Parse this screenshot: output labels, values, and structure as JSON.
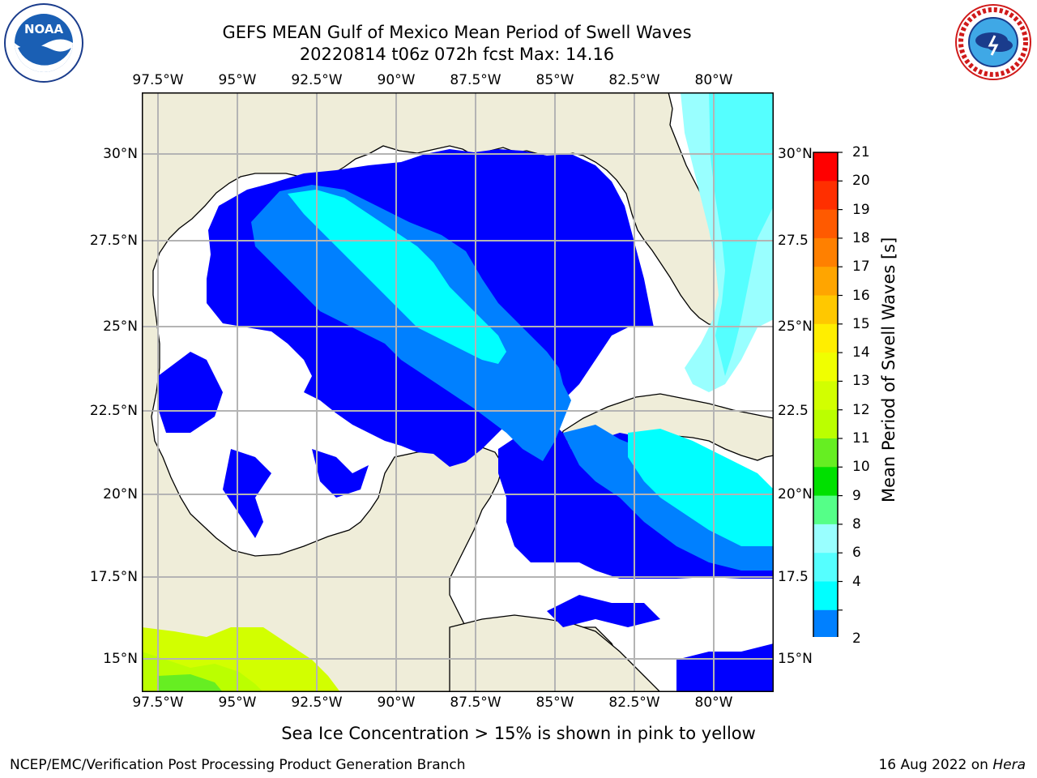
{
  "title": {
    "line1": "GEFS MEAN Gulf of Mexico Mean Period of Swell Waves",
    "line2": "20220814 t06z 072h fcst   Max: 14.16"
  },
  "logos": {
    "left": {
      "icon": "noaa-logo-icon",
      "text": "NOAA"
    },
    "right": {
      "icon": "nws-logo-icon",
      "ring_text": "NATIONAL WEATHER SERVICE"
    }
  },
  "map": {
    "lon_ticks": [
      "97.5°W",
      "95°W",
      "92.5°W",
      "90°W",
      "87.5°W",
      "85°W",
      "82.5°W",
      "80°W"
    ],
    "lat_ticks_left": [
      "30°N",
      "27.5°N",
      "25°N",
      "22.5°N",
      "20°N",
      "17.5°N",
      "15°N"
    ],
    "lat_ticks_right": [
      "30°N",
      "27.5",
      "25°N",
      "22.5",
      "20°N",
      "17.5",
      "15°N"
    ],
    "colors": {
      "land": "#efedd9",
      "ocean_blank": "#ffffff",
      "grid": "#b4b4b4",
      "coast": "#000000"
    }
  },
  "colorbar": {
    "label": "Mean Period of Swell Waves [s]",
    "ticks": [
      "21",
      "20",
      "19",
      "18",
      "17",
      "16",
      "15",
      "14",
      "13",
      "12",
      "11",
      "10",
      "9",
      "8",
      "6",
      "4",
      "2"
    ],
    "colors": [
      "#ff0000",
      "#ff2f00",
      "#ff5a00",
      "#ff8000",
      "#ffa500",
      "#ffc800",
      "#ffee00",
      "#f0ff00",
      "#d2ff00",
      "#bbff00",
      "#66ee22",
      "#00e000",
      "#55ff88",
      "#99ffff",
      "#55ffff",
      "#00ffff",
      "#0080ff"
    ],
    "under_color": "#0000ff"
  },
  "footer": {
    "note": "Sea Ice Concentration > 15% is shown in pink to yellow",
    "credit": "NCEP/EMC/Verification Post Processing Product Generation Branch",
    "date": "16 Aug 2022 on",
    "host": "Hera"
  }
}
